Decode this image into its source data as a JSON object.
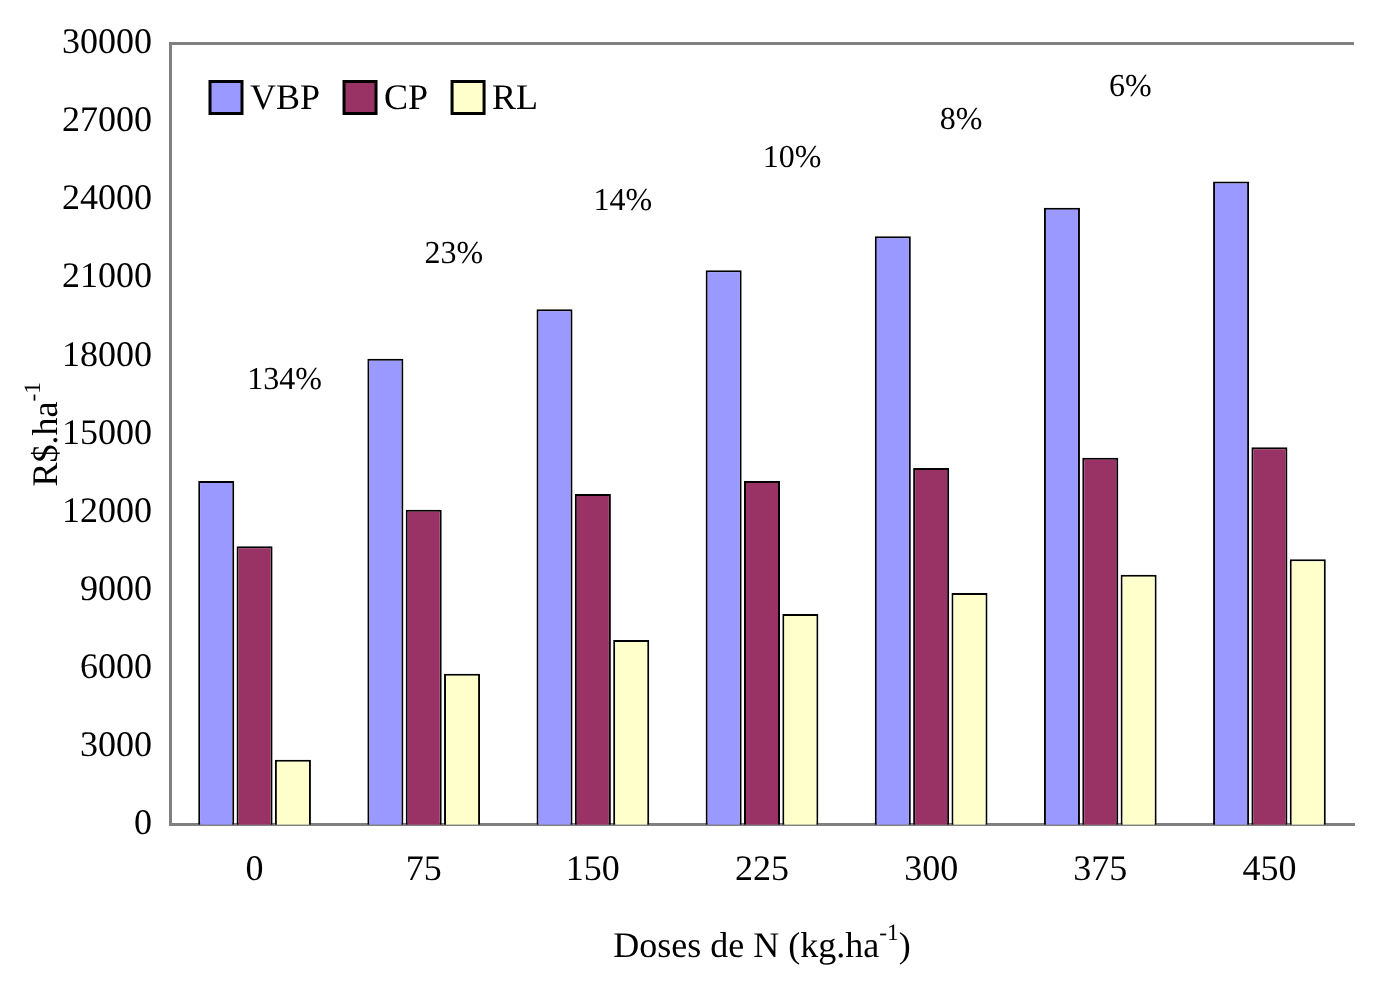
{
  "chart_data": {
    "type": "bar",
    "xlabel": "Doses de N (kg.ha$^{-1}$)",
    "ylabel": "R$.ha$^{-1}$",
    "categories": [
      "0",
      "75",
      "150",
      "225",
      "300",
      "375",
      "450"
    ],
    "series": [
      {
        "name": "VBP",
        "color": "#9999ff",
        "values": [
          13200,
          17900,
          19800,
          21300,
          22600,
          23700,
          24700
        ]
      },
      {
        "name": "CP",
        "color": "#993366",
        "values": [
          10700,
          12100,
          12700,
          13200,
          13700,
          14100,
          14500
        ]
      },
      {
        "name": "RL",
        "color": "#ffffcc",
        "values": [
          2500,
          5800,
          7100,
          8100,
          8900,
          9600,
          10200
        ]
      }
    ],
    "annotations": [
      "134%",
      "23%",
      "14%",
      "10%",
      "8%",
      "6%"
    ],
    "ylim": [
      0,
      30000
    ],
    "yticks": [
      0,
      3000,
      6000,
      9000,
      12000,
      15000,
      18000,
      21000,
      24000,
      27000,
      30000
    ],
    "grid": false,
    "legend": "top left"
  }
}
